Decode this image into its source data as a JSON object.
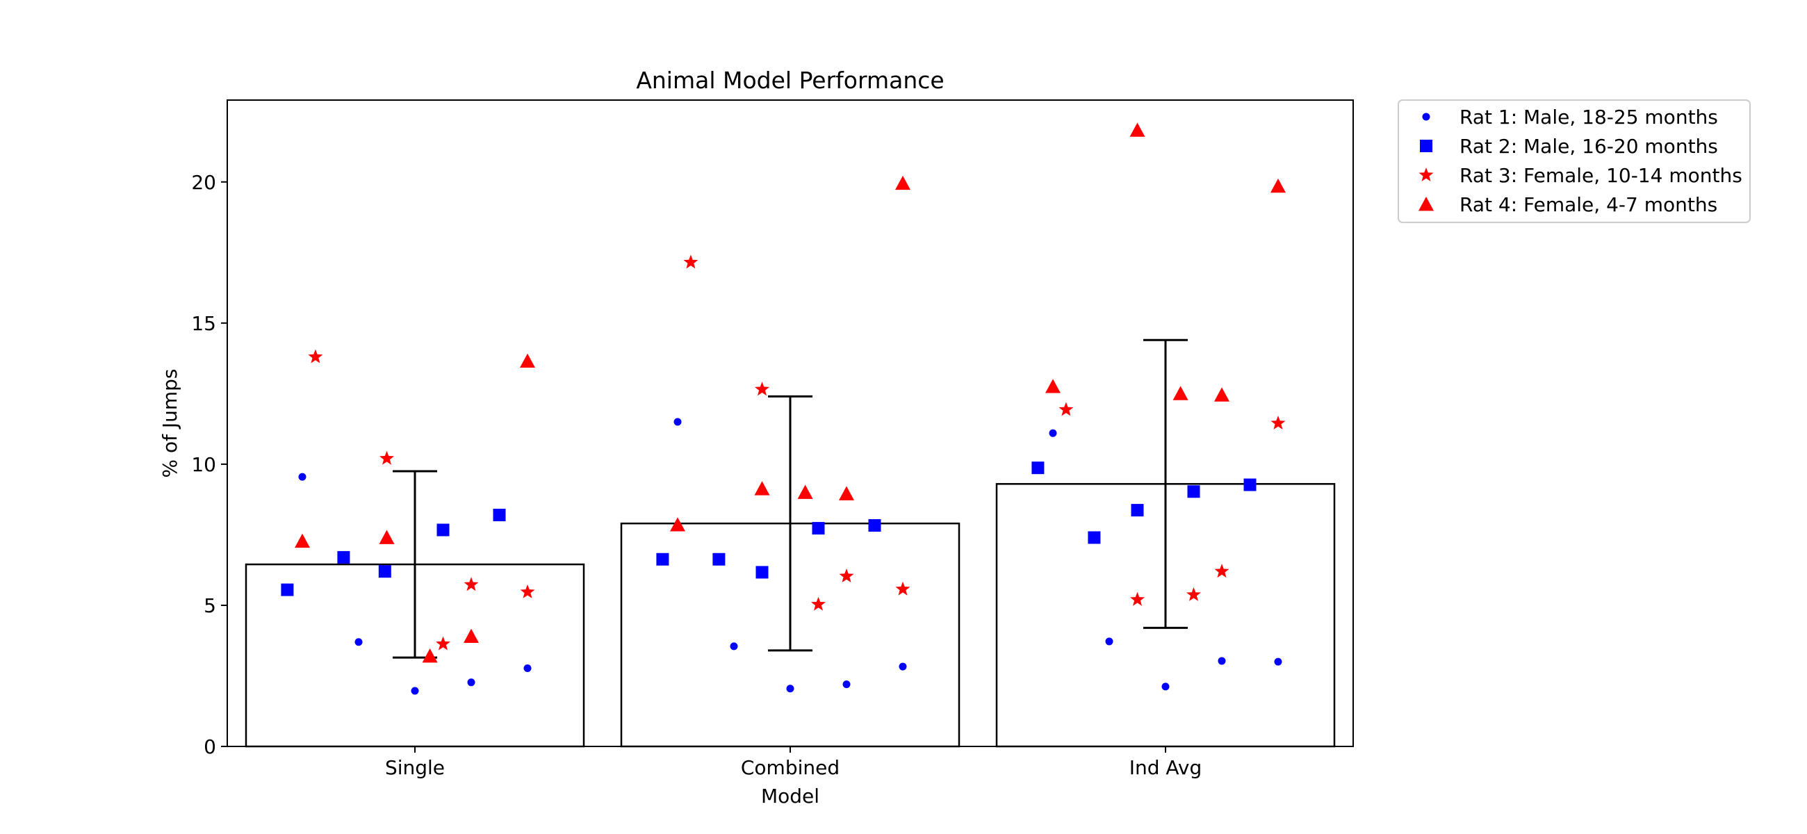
{
  "chart_data": {
    "type": "bar",
    "title": "Animal Model Performance",
    "xlabel": "Model",
    "ylabel": "% of Jumps",
    "categories": [
      "Single",
      "Combined",
      "Ind Avg"
    ],
    "values": [
      6.45,
      7.9,
      9.3
    ],
    "error": [
      3.3,
      4.5,
      5.1
    ],
    "ylim": [
      0,
      22.9
    ],
    "yticks": [
      0,
      5,
      10,
      15,
      20
    ],
    "grid": false,
    "legend_position": "outside-top-right",
    "bar_style": {
      "fill": "#ffffff",
      "edge": "#000000"
    },
    "series": [
      {
        "name": "Rat 1: Male, 18-25 months",
        "marker": "circle",
        "color": "#0000ff",
        "points": [
          {
            "category": "Single",
            "offset": -0.3,
            "y": 9.55
          },
          {
            "category": "Single",
            "offset": -0.15,
            "y": 3.7
          },
          {
            "category": "Single",
            "offset": 0.0,
            "y": 1.97
          },
          {
            "category": "Single",
            "offset": 0.15,
            "y": 2.27
          },
          {
            "category": "Single",
            "offset": 0.3,
            "y": 2.77
          },
          {
            "category": "Combined",
            "offset": -0.3,
            "y": 11.5
          },
          {
            "category": "Combined",
            "offset": -0.15,
            "y": 3.55
          },
          {
            "category": "Combined",
            "offset": 0.0,
            "y": 2.05
          },
          {
            "category": "Combined",
            "offset": 0.15,
            "y": 2.2
          },
          {
            "category": "Combined",
            "offset": 0.3,
            "y": 2.83
          },
          {
            "category": "Ind Avg",
            "offset": -0.3,
            "y": 11.1
          },
          {
            "category": "Ind Avg",
            "offset": -0.15,
            "y": 3.72
          },
          {
            "category": "Ind Avg",
            "offset": 0.0,
            "y": 2.12
          },
          {
            "category": "Ind Avg",
            "offset": 0.15,
            "y": 3.03
          },
          {
            "category": "Ind Avg",
            "offset": 0.3,
            "y": 3.0
          }
        ]
      },
      {
        "name": "Rat 2: Male, 16-20 months",
        "marker": "square",
        "color": "#0000ff",
        "points": [
          {
            "category": "Single",
            "offset": -0.34,
            "y": 5.55
          },
          {
            "category": "Single",
            "offset": -0.19,
            "y": 6.7
          },
          {
            "category": "Single",
            "offset": -0.08,
            "y": 6.2
          },
          {
            "category": "Single",
            "offset": 0.075,
            "y": 7.67
          },
          {
            "category": "Single",
            "offset": 0.225,
            "y": 8.2
          },
          {
            "category": "Combined",
            "offset": -0.34,
            "y": 6.63
          },
          {
            "category": "Combined",
            "offset": -0.19,
            "y": 6.63
          },
          {
            "category": "Combined",
            "offset": -0.075,
            "y": 6.17
          },
          {
            "category": "Combined",
            "offset": 0.075,
            "y": 7.73
          },
          {
            "category": "Combined",
            "offset": 0.225,
            "y": 7.83
          },
          {
            "category": "Ind Avg",
            "offset": -0.34,
            "y": 9.87
          },
          {
            "category": "Ind Avg",
            "offset": -0.19,
            "y": 7.4
          },
          {
            "category": "Ind Avg",
            "offset": -0.075,
            "y": 8.37
          },
          {
            "category": "Ind Avg",
            "offset": 0.075,
            "y": 9.03
          },
          {
            "category": "Ind Avg",
            "offset": 0.225,
            "y": 9.27
          }
        ]
      },
      {
        "name": "Rat 3: Female, 10-14 months",
        "marker": "star",
        "color": "#ff0000",
        "points": [
          {
            "category": "Single",
            "offset": -0.265,
            "y": 13.8
          },
          {
            "category": "Single",
            "offset": -0.075,
            "y": 10.2
          },
          {
            "category": "Single",
            "offset": 0.075,
            "y": 3.63
          },
          {
            "category": "Single",
            "offset": 0.15,
            "y": 5.73
          },
          {
            "category": "Single",
            "offset": 0.3,
            "y": 5.47
          },
          {
            "category": "Combined",
            "offset": -0.265,
            "y": 17.15
          },
          {
            "category": "Combined",
            "offset": -0.075,
            "y": 12.65
          },
          {
            "category": "Combined",
            "offset": 0.075,
            "y": 5.03
          },
          {
            "category": "Combined",
            "offset": 0.15,
            "y": 6.03
          },
          {
            "category": "Combined",
            "offset": 0.3,
            "y": 5.57
          },
          {
            "category": "Ind Avg",
            "offset": -0.265,
            "y": 11.93
          },
          {
            "category": "Ind Avg",
            "offset": -0.075,
            "y": 5.2
          },
          {
            "category": "Ind Avg",
            "offset": 0.075,
            "y": 5.37
          },
          {
            "category": "Ind Avg",
            "offset": 0.15,
            "y": 6.2
          },
          {
            "category": "Ind Avg",
            "offset": 0.3,
            "y": 11.45
          }
        ]
      },
      {
        "name": "Rat 4: Female, 4-7 months",
        "marker": "triangle",
        "color": "#ff0000",
        "points": [
          {
            "category": "Single",
            "offset": -0.3,
            "y": 7.27
          },
          {
            "category": "Single",
            "offset": -0.075,
            "y": 7.4
          },
          {
            "category": "Single",
            "offset": 0.04,
            "y": 3.2
          },
          {
            "category": "Single",
            "offset": 0.15,
            "y": 3.9
          },
          {
            "category": "Single",
            "offset": 0.3,
            "y": 13.65
          },
          {
            "category": "Combined",
            "offset": -0.3,
            "y": 7.85
          },
          {
            "category": "Combined",
            "offset": -0.075,
            "y": 9.13
          },
          {
            "category": "Combined",
            "offset": 0.04,
            "y": 9.0
          },
          {
            "category": "Combined",
            "offset": 0.15,
            "y": 8.95
          },
          {
            "category": "Combined",
            "offset": 0.3,
            "y": 19.95
          },
          {
            "category": "Ind Avg",
            "offset": -0.3,
            "y": 12.75
          },
          {
            "category": "Ind Avg",
            "offset": -0.075,
            "y": 21.83
          },
          {
            "category": "Ind Avg",
            "offset": 0.04,
            "y": 12.5
          },
          {
            "category": "Ind Avg",
            "offset": 0.15,
            "y": 12.45
          },
          {
            "category": "Ind Avg",
            "offset": 0.3,
            "y": 19.85
          }
        ]
      }
    ]
  }
}
